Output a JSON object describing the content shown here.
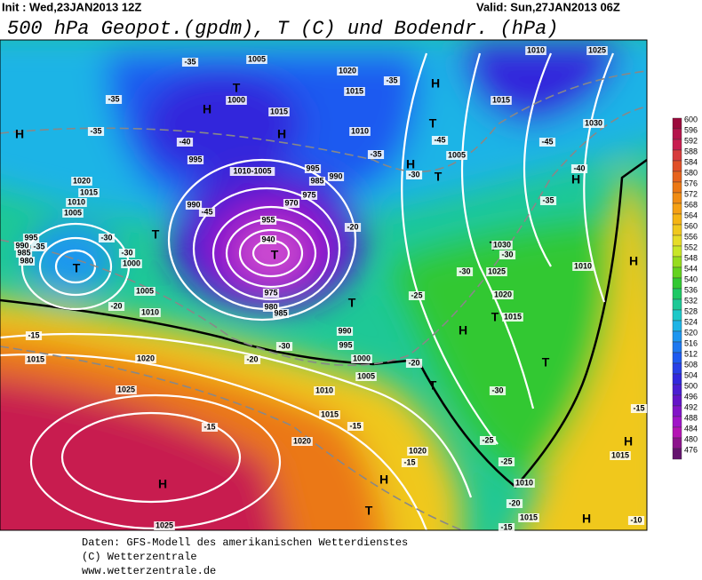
{
  "header": {
    "init": "Init : Wed,23JAN2013 12Z",
    "valid": "Valid: Sun,27JAN2013 06Z",
    "title": "500 hPa Geopot.(gpdm), T (C) und Bodendr. (hPa)"
  },
  "colorbar": {
    "labels": [
      600,
      596,
      592,
      588,
      584,
      580,
      576,
      572,
      568,
      564,
      560,
      556,
      552,
      548,
      544,
      540,
      536,
      532,
      528,
      524,
      520,
      516,
      512,
      508,
      504,
      500,
      496,
      492,
      488,
      484,
      480,
      476
    ],
    "colors": [
      "#9b0a3c",
      "#b4144b",
      "#c81e50",
      "#d73c3c",
      "#e05028",
      "#e6641e",
      "#eb7814",
      "#f08c14",
      "#f5a014",
      "#f5b414",
      "#f0c81e",
      "#e6dc28",
      "#c8e628",
      "#96dc1e",
      "#64d21e",
      "#32c832",
      "#1ec864",
      "#1ec896",
      "#1ec8c8",
      "#1eb4e6",
      "#1e96f0",
      "#1e78f0",
      "#1e5af0",
      "#2840e6",
      "#3228dc",
      "#4b1ed2",
      "#6414c8",
      "#8214c8",
      "#a014c8",
      "#b414b4",
      "#8c148c",
      "#64146e"
    ]
  },
  "map": {
    "labels": [
      "H",
      "H",
      "T",
      "H",
      "H",
      "T",
      "H",
      "T",
      "H",
      "T",
      "T",
      "T",
      "T",
      "H",
      "T",
      "T",
      "T",
      "H",
      "H",
      "H",
      "H",
      "T",
      "H",
      "T",
      "1005",
      "1020",
      "1015",
      "1000",
      "1015",
      "1010",
      "1015",
      "1030",
      "1025",
      "1010",
      "995",
      "1010-1005",
      "995",
      "985",
      "990",
      "975",
      "970",
      "990",
      "1005",
      "1020",
      "1015",
      "1010",
      "1005",
      "995",
      "990",
      "985",
      "980",
      "1000",
      "1005",
      "1010",
      "1030",
      "1025",
      "1020",
      "1015",
      "1010",
      "990",
      "995",
      "1000",
      "1005",
      "1010",
      "1015",
      "1020",
      "1020",
      "1015",
      "1020",
      "1025",
      "1015",
      "1010",
      "1015",
      "1025",
      "955",
      "940",
      "975",
      "980",
      "985",
      "-35",
      "-35",
      "-35",
      "-40",
      "-45",
      "-35",
      "-30",
      "-35",
      "-30",
      "-30",
      "-20",
      "-20",
      "-25",
      "-30",
      "-45",
      "-45",
      "-40",
      "-35",
      "-30",
      "-15",
      "-20",
      "-30",
      "-20",
      "-30",
      "-15",
      "-15",
      "-15",
      "-25",
      "-25",
      "-20",
      "-15",
      "-15",
      "-10",
      "-35"
    ]
  },
  "footer": [
    "Daten: GFS-Modell des amerikanischen Wetterdienstes",
    "(C) Wetterzentrale",
    "www.wetterzentrale.de"
  ]
}
